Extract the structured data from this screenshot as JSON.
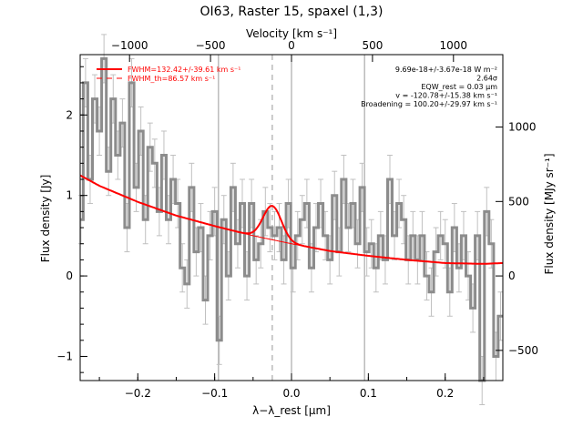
{
  "chart_data": {
    "type": "line",
    "title": "OI63, Raster 15, spaxel (1,3)",
    "top_axis_label": "Velocity [km s⁻¹]",
    "xlabel": "λ−λ_rest [μm]",
    "ylabel": "Flux density [Jy]",
    "right_axis_label": "Flux density [MJy sr⁻¹]",
    "xlim": [
      -0.275,
      0.275
    ],
    "ylim": [
      -1.3,
      2.75
    ],
    "x_ticks": [
      -0.2,
      -0.1,
      0.0,
      0.1,
      0.2
    ],
    "x_tick_labels": [
      "−0.2",
      "−0.1",
      "0.0",
      "0.1",
      "0.2"
    ],
    "y_ticks": [
      -1,
      0,
      1,
      2
    ],
    "y_tick_labels": [
      "−1",
      "0",
      "1",
      "2"
    ],
    "top_ticks_velocity": [
      -1000,
      -500,
      0,
      500,
      1000
    ],
    "top_tick_labels": [
      "−1000",
      "−500",
      "0",
      "500",
      "1000"
    ],
    "right_ticks": [
      -500,
      0,
      500,
      1000
    ],
    "right_tick_labels": [
      "−500",
      "0",
      "500",
      "1000"
    ],
    "right_axis_scale": 0.00185,
    "vertical_lines_solid": [
      -0.095,
      0.0,
      0.095
    ],
    "vertical_line_dashed": -0.025,
    "annotations": [
      "9.69e-18+/-3.67e-18 W m⁻²",
      "2.64σ",
      "EQW_rest = 0.03 μm",
      "v = -120.78+/-15.38 km s⁻¹",
      "Broadening = 100.20+/-29.97 km s⁻¹"
    ],
    "legend": [
      {
        "label": "FWHM=132.42+/-39.61 km s⁻¹",
        "style": "solid"
      },
      {
        "label": "FWHM_th=86.57 km s⁻¹",
        "style": "dashed"
      }
    ],
    "legend_position": "top-left",
    "series": [
      {
        "kind": "spectrum",
        "x": [
          -0.274,
          -0.268,
          -0.262,
          -0.256,
          -0.25,
          -0.244,
          -0.238,
          -0.232,
          -0.226,
          -0.22,
          -0.214,
          -0.208,
          -0.202,
          -0.196,
          -0.19,
          -0.184,
          -0.178,
          -0.172,
          -0.166,
          -0.16,
          -0.154,
          -0.148,
          -0.142,
          -0.136,
          -0.13,
          -0.124,
          -0.118,
          -0.112,
          -0.106,
          -0.1,
          -0.094,
          -0.088,
          -0.082,
          -0.076,
          -0.07,
          -0.064,
          -0.058,
          -0.052,
          -0.046,
          -0.04,
          -0.034,
          -0.028,
          -0.022,
          -0.016,
          -0.01,
          -0.004,
          0.002,
          0.008,
          0.014,
          0.02,
          0.026,
          0.032,
          0.038,
          0.044,
          0.05,
          0.056,
          0.062,
          0.068,
          0.074,
          0.08,
          0.086,
          0.092,
          0.098,
          0.104,
          0.11,
          0.116,
          0.122,
          0.128,
          0.134,
          0.14,
          0.146,
          0.152,
          0.158,
          0.164,
          0.17,
          0.176,
          0.182,
          0.188,
          0.194,
          0.2,
          0.206,
          0.212,
          0.218,
          0.224,
          0.23,
          0.236,
          0.242,
          0.248,
          0.254,
          0.26,
          0.266,
          0.272
        ],
        "y": [
          0.7,
          2.4,
          1.2,
          2.2,
          1.8,
          2.7,
          1.3,
          2.2,
          1.5,
          1.9,
          0.6,
          2.4,
          1.1,
          1.8,
          0.7,
          1.6,
          1.4,
          0.8,
          1.5,
          0.7,
          1.2,
          0.9,
          0.1,
          -0.1,
          1.1,
          0.3,
          0.6,
          -0.3,
          0.5,
          0.8,
          -0.8,
          0.7,
          0.0,
          1.1,
          0.4,
          0.9,
          0.0,
          0.9,
          0.2,
          0.4,
          0.8,
          0.6,
          0.5,
          0.6,
          0.2,
          0.9,
          0.1,
          0.5,
          0.7,
          0.9,
          0.1,
          0.6,
          0.9,
          0.5,
          0.2,
          1.0,
          0.3,
          1.2,
          0.6,
          0.9,
          0.4,
          1.1,
          0.3,
          0.4,
          0.1,
          0.5,
          0.2,
          1.2,
          0.5,
          0.9,
          0.7,
          0.2,
          0.5,
          0.2,
          0.5,
          0.0,
          -0.2,
          0.3,
          0.5,
          0.4,
          -0.2,
          0.6,
          0.1,
          0.5,
          0.0,
          -0.4,
          0.5,
          -1.3,
          0.8,
          0.4,
          -1.0,
          -0.5
        ],
        "error": 0.3
      },
      {
        "kind": "continuum",
        "x": [
          -0.275,
          -0.25,
          -0.2,
          -0.15,
          -0.1,
          -0.05,
          0.0,
          0.05,
          0.1,
          0.15,
          0.2,
          0.25,
          0.275
        ],
        "y": [
          1.25,
          1.12,
          0.92,
          0.75,
          0.62,
          0.5,
          0.4,
          0.31,
          0.25,
          0.2,
          0.16,
          0.15,
          0.16
        ]
      },
      {
        "kind": "fit",
        "peak_x": -0.025,
        "peak_amplitude": 0.42,
        "sigma": 0.012
      }
    ],
    "colors": {
      "spectrum": "#8c8c8c",
      "errorbar": "#c0c0c0",
      "fit": "#ff0000",
      "axis": "#000000",
      "vline": "#999999"
    }
  }
}
